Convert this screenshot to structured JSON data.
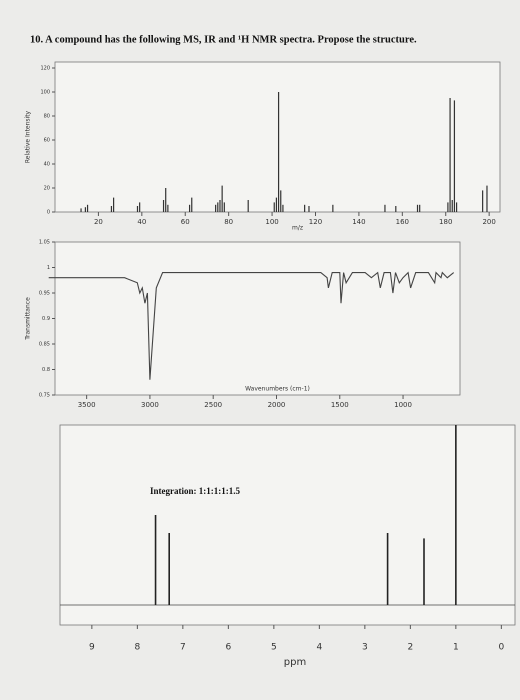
{
  "question": "10. A compound has the following MS, IR and ¹H NMR spectra. Propose the structure.",
  "chart_data": [
    {
      "type": "bar",
      "xlabel": "m/z",
      "ylabel": "Relative Intensity",
      "color": "#333333",
      "x": [
        12,
        14,
        15,
        26,
        27,
        38,
        39,
        50,
        51,
        52,
        62,
        63,
        74,
        75,
        76,
        77,
        78,
        89,
        101,
        102,
        103,
        104,
        105,
        115,
        117,
        128,
        152,
        157,
        167,
        168,
        181,
        182,
        183,
        184,
        185,
        197,
        199
      ],
      "values": [
        3,
        4,
        6,
        5,
        12,
        5,
        8,
        10,
        20,
        6,
        6,
        12,
        6,
        8,
        10,
        22,
        8,
        10,
        8,
        12,
        100,
        18,
        6,
        6,
        5,
        6,
        6,
        5,
        6,
        6,
        8,
        95,
        10,
        93,
        8,
        18,
        22
      ],
      "xlim": [
        0,
        205
      ],
      "xticks": [
        20,
        40,
        60,
        80,
        100,
        120,
        140,
        160,
        180,
        200
      ],
      "ylim": [
        0,
        125
      ],
      "yticks": [
        0,
        20,
        40,
        60,
        80,
        100,
        120
      ]
    },
    {
      "type": "line",
      "xlabel": "Wavenumbers (cm-1)",
      "ylabel": "Transmittance",
      "color": "#444444",
      "x": [
        3800,
        3600,
        3400,
        3200,
        3100,
        3080,
        3060,
        3040,
        3020,
        3000,
        2950,
        2900,
        2500,
        2000,
        1800,
        1650,
        1600,
        1590,
        1560,
        1500,
        1490,
        1470,
        1450,
        1400,
        1300,
        1250,
        1200,
        1180,
        1150,
        1100,
        1080,
        1060,
        1030,
        1000,
        960,
        940,
        900,
        860,
        800,
        750,
        740,
        700,
        690,
        650,
        600
      ],
      "values": [
        0.98,
        0.98,
        0.98,
        0.98,
        0.97,
        0.95,
        0.96,
        0.93,
        0.95,
        0.78,
        0.96,
        0.99,
        0.99,
        0.99,
        0.99,
        0.99,
        0.98,
        0.96,
        0.99,
        0.99,
        0.93,
        0.99,
        0.97,
        0.99,
        0.99,
        0.98,
        0.99,
        0.96,
        0.99,
        0.99,
        0.95,
        0.99,
        0.97,
        0.98,
        0.99,
        0.96,
        0.99,
        0.99,
        0.99,
        0.97,
        0.99,
        0.98,
        0.99,
        0.98,
        0.99
      ],
      "xlim": [
        3750,
        550
      ],
      "xticks": [
        3500,
        3000,
        2500,
        2000,
        1500,
        1000
      ],
      "ylim": [
        0.75,
        1.05
      ],
      "yticks": [
        0.75,
        0.8,
        0.85,
        0.9,
        0.95,
        1,
        1.05
      ]
    },
    {
      "type": "stem",
      "xlabel": "ppm",
      "annotation": "Integration: 1:1:1:1:1.5",
      "color": "#222222",
      "x": [
        7.6,
        7.3,
        2.5,
        1.7,
        1.0
      ],
      "values": [
        50,
        40,
        40,
        37,
        100
      ],
      "xlim": [
        9.7,
        -0.3
      ],
      "xticks": [
        9,
        8,
        7,
        6,
        5,
        4,
        3,
        2,
        1,
        0
      ]
    }
  ]
}
